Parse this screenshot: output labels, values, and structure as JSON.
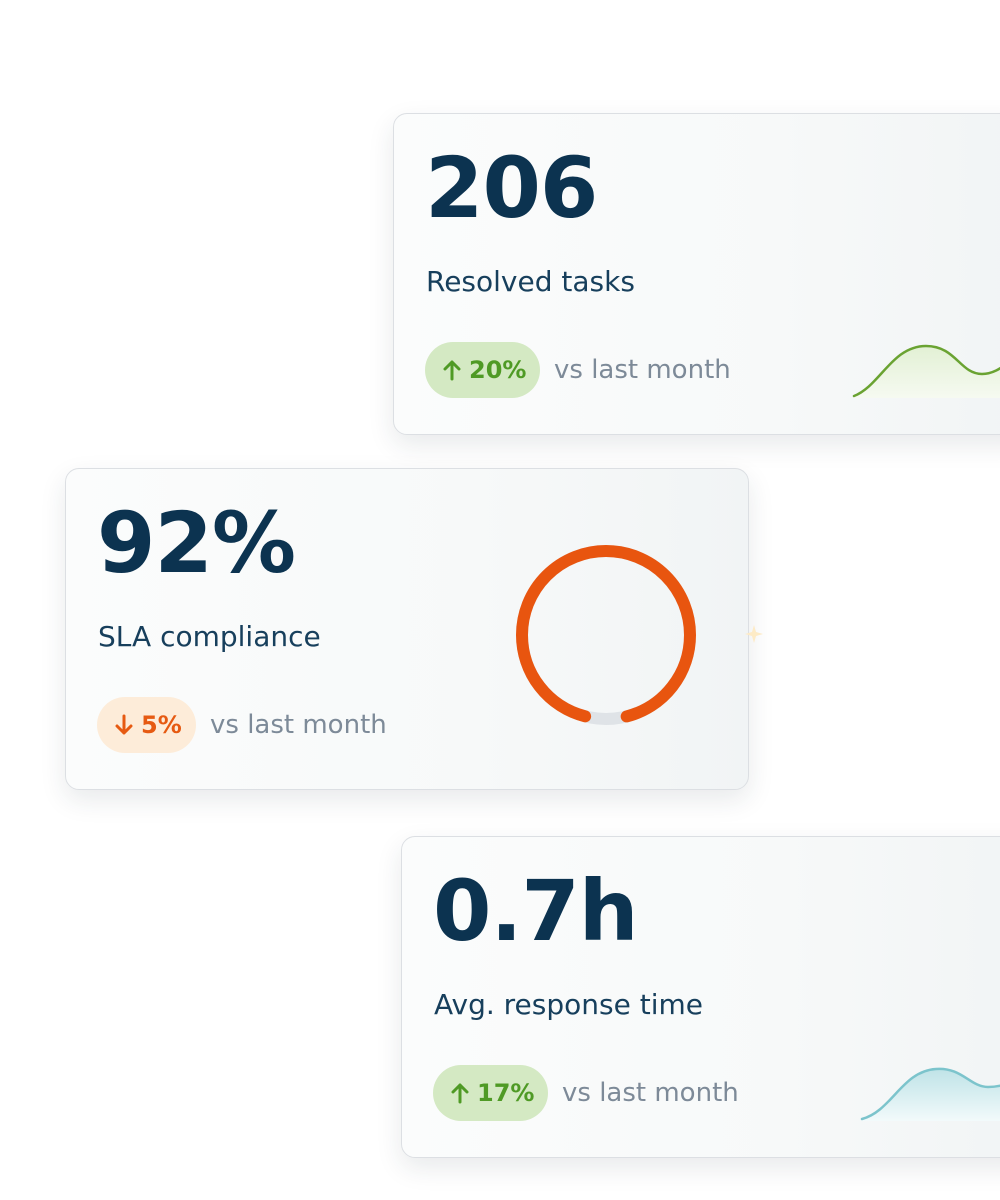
{
  "cards": [
    {
      "id": "resolved",
      "value": "206",
      "label": "Resolved tasks",
      "trend": {
        "direction": "up",
        "percent": "20%",
        "note": "vs last month",
        "color": "#4f9a25",
        "background": "#d4e9c3"
      },
      "sparkline": {
        "color": "#6aa332",
        "fill": "#e8f3dc"
      }
    },
    {
      "id": "sla",
      "value": "92%",
      "label": "SLA compliance",
      "trend": {
        "direction": "down",
        "percent": "5%",
        "note": "vs last month",
        "color": "#e65a12",
        "background": "#fdecd9"
      },
      "gauge": {
        "fraction": 0.92,
        "color": "#e8550f",
        "track": "#dfe3e7"
      }
    },
    {
      "id": "response",
      "value": "0.7h",
      "label": "Avg. response time",
      "trend": {
        "direction": "up",
        "percent": "17%",
        "note": "vs last month",
        "color": "#4f9a25",
        "background": "#d4e9c3"
      },
      "sparkline": {
        "color": "#7cc4cc",
        "fill": "#d7eef0"
      }
    }
  ],
  "icons": {
    "up": "arrow-up-icon",
    "down": "arrow-down-icon",
    "sparkle": "sparkle-icon"
  }
}
